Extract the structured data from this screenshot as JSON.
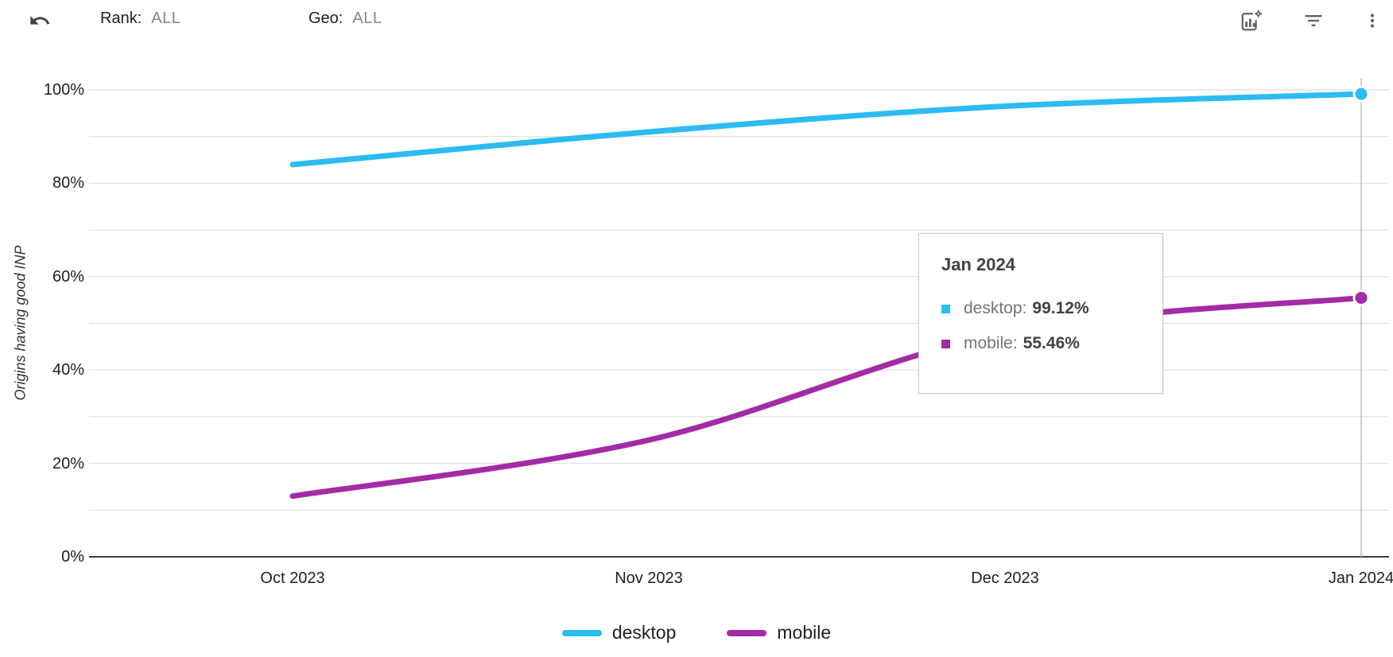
{
  "toolbar": {
    "filters": [
      {
        "label": "Rank:",
        "value": "ALL"
      },
      {
        "label": "Geo:",
        "value": "ALL"
      }
    ],
    "icons": [
      "undo-icon",
      "chart-settings-icon",
      "filter-icon",
      "more-vert-icon"
    ]
  },
  "chart_data": {
    "type": "line",
    "title": "",
    "xlabel": "",
    "ylabel": "Origins having good INP",
    "x": [
      "Oct 2023",
      "Nov 2023",
      "Dec 2023",
      "Jan 2024"
    ],
    "y_tick_labels": [
      "0%",
      "20%",
      "40%",
      "60%",
      "80%",
      "100%"
    ],
    "ylim": [
      0,
      100
    ],
    "grid": true,
    "legend_position": "bottom",
    "series": [
      {
        "name": "desktop",
        "color": "#2bbcf2",
        "values": [
          84,
          91,
          96.5,
          99.12
        ]
      },
      {
        "name": "mobile",
        "color": "#a32ba5",
        "values": [
          13,
          25,
          48,
          55.46
        ]
      }
    ],
    "highlight": {
      "x": "Jan 2024",
      "desktop": "99.12%",
      "mobile": "55.46%"
    }
  },
  "tooltip": {
    "title": "Jan 2024",
    "rows": [
      {
        "label": "desktop:",
        "value": "99.12%"
      },
      {
        "label": "mobile:",
        "value": "55.46%"
      }
    ]
  },
  "legend": {
    "items": [
      {
        "label": "desktop"
      },
      {
        "label": "mobile"
      }
    ]
  },
  "colors": {
    "desktop": "#2bbcf2",
    "mobile": "#a32ba5",
    "gridline": "#e4e4e4",
    "axis": "#3b3b3b",
    "crosshair": "#bdbdbd"
  }
}
